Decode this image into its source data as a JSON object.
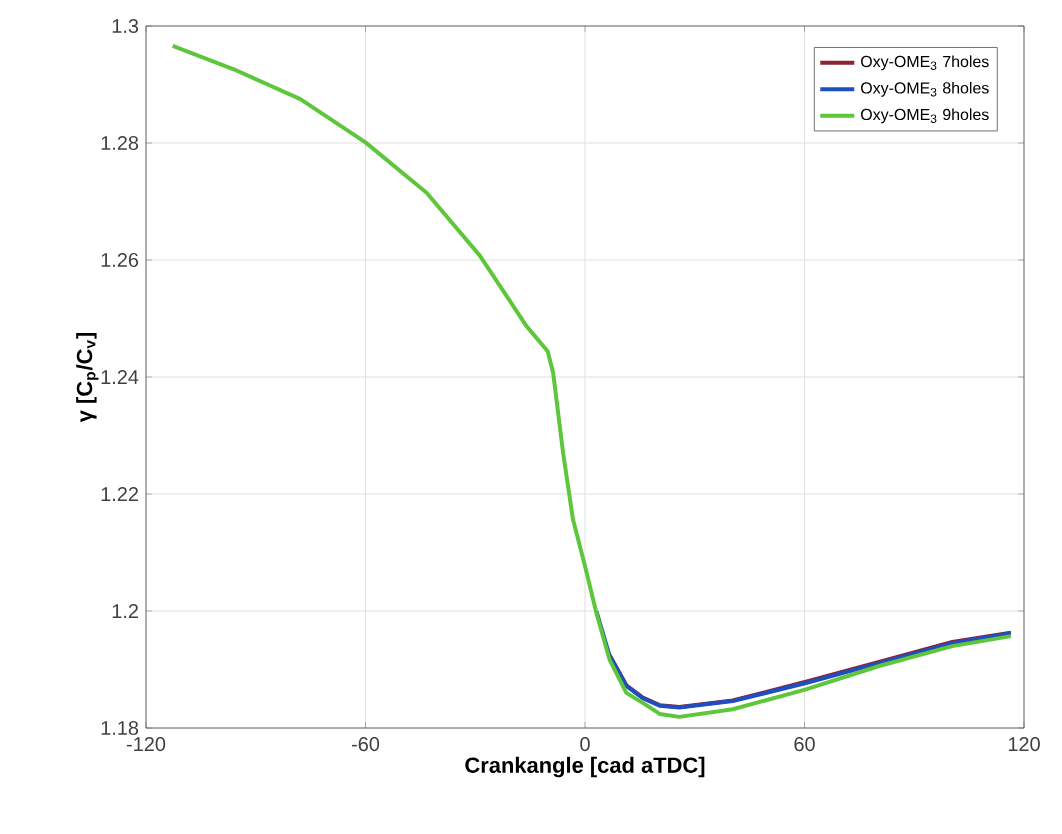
{
  "chart_data": {
    "type": "line",
    "xlabel": "Crankangle [cad aTDC]",
    "ylabel": "γ [C$_{p}$/C$_{v}$]",
    "xlim": [
      -120,
      120
    ],
    "ylim": [
      1.18,
      1.3
    ],
    "xticks": [
      -120,
      -60,
      0,
      60,
      120
    ],
    "yticks": [
      1.18,
      1.2,
      1.22,
      1.24,
      1.26,
      1.28,
      1.3
    ],
    "grid": true,
    "legend": "top right",
    "marker": "none",
    "line_style": "solid",
    "series": [
      {
        "name": "Oxy-OME$_{3}$ 7holes",
        "color": "#8b2331",
        "x": [
          6.7,
          11.3,
          15.8,
          20.4,
          25.8,
          40.4,
          60.4,
          80.4,
          100.4,
          116.4
        ],
        "values": [
          1.1925,
          1.1873,
          1.1852,
          1.1839,
          1.1836,
          1.1847,
          1.1879,
          1.1913,
          1.1947,
          1.1963
        ]
      },
      {
        "name": "Oxy-OME$_{3}$ 8holes",
        "color": "#1f4fbf",
        "x": [
          3.1,
          6.7,
          11.3,
          15.8,
          20.4,
          25.8,
          40.4,
          60.4,
          80.4,
          100.4,
          116.4
        ],
        "values": [
          1.2,
          1.1924,
          1.1872,
          1.1851,
          1.1838,
          1.1835,
          1.1846,
          1.1877,
          1.1911,
          1.1945,
          1.1962
        ]
      },
      {
        "name": "Oxy-OME$_{3}$ 9holes",
        "color": "#5ec63b",
        "x": [
          -112.7,
          -96,
          -77.8,
          -60,
          -43.3,
          -28.7,
          -16,
          -10.2,
          -8.7,
          -6,
          -3.3,
          0,
          3.1,
          6.7,
          11.3,
          15.8,
          20.4,
          25.8,
          40.4,
          60.4,
          80.4,
          100.4,
          116.4
        ],
        "values": [
          1.2966,
          1.2926,
          1.2875,
          1.2801,
          1.2715,
          1.2607,
          1.2487,
          1.2444,
          1.2407,
          1.2271,
          1.2157,
          1.2077,
          1.1997,
          1.1917,
          1.186,
          1.1843,
          1.1824,
          1.1819,
          1.1832,
          1.1866,
          1.1906,
          1.194,
          1.1957
        ]
      }
    ]
  }
}
